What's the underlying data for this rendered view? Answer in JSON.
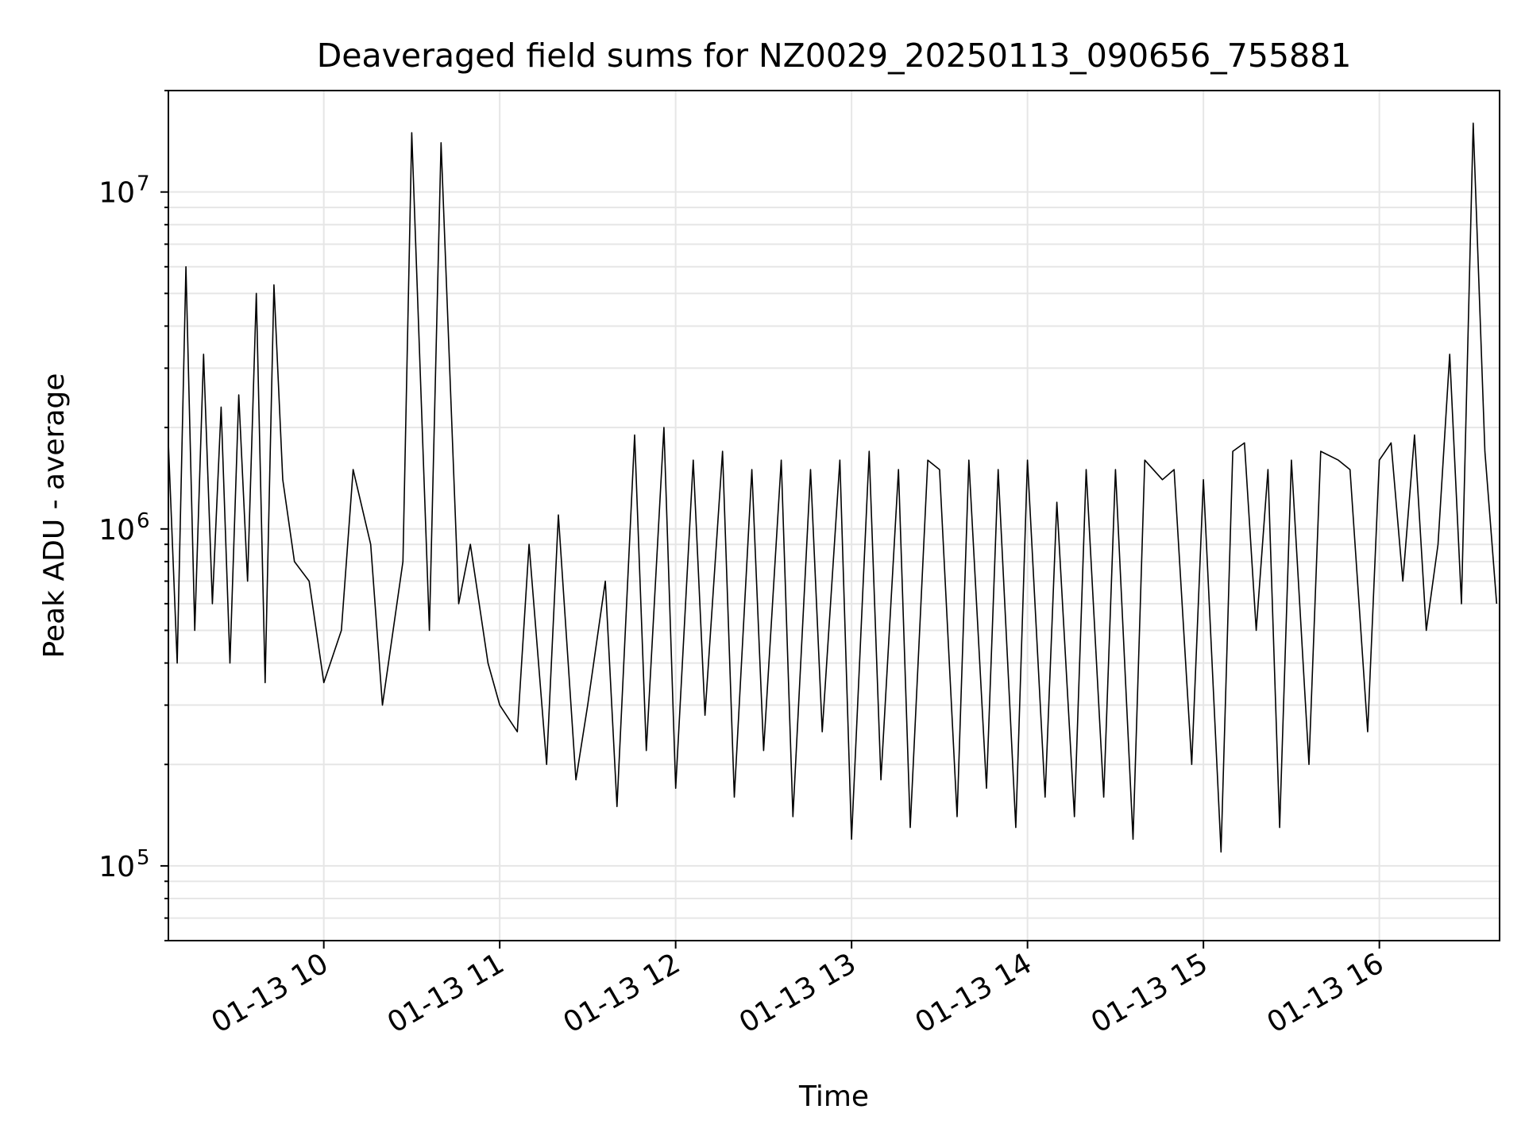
{
  "chart_data": {
    "type": "line",
    "title": "Deaveraged field sums for NZ0029_20250113_090656_755881",
    "xlabel": "Time",
    "ylabel": "Peak ADU - average",
    "yscale": "log",
    "ylim": [
      60000,
      20000000
    ],
    "xlim": [
      "2025-01-13 09:07",
      "2025-01-13 16:41"
    ],
    "grid": true,
    "x_ticks": [
      {
        "value": "2025-01-13 10:00",
        "label": "01-13 10"
      },
      {
        "value": "2025-01-13 11:00",
        "label": "01-13 11"
      },
      {
        "value": "2025-01-13 12:00",
        "label": "01-13 12"
      },
      {
        "value": "2025-01-13 13:00",
        "label": "01-13 13"
      },
      {
        "value": "2025-01-13 14:00",
        "label": "01-13 14"
      },
      {
        "value": "2025-01-13 15:00",
        "label": "01-13 15"
      },
      {
        "value": "2025-01-13 16:00",
        "label": "01-13 16"
      }
    ],
    "y_ticks": [
      {
        "value": 100000,
        "base": "10",
        "exp": "5"
      },
      {
        "value": 1000000,
        "base": "10",
        "exp": "6"
      },
      {
        "value": 10000000,
        "base": "10",
        "exp": "7"
      }
    ],
    "line_color": "#000000",
    "grid_color": "#e6e6e6",
    "series": [
      {
        "x": [
          "2025-01-13 09:07",
          "2025-01-13 09:10",
          "2025-01-13 09:13",
          "2025-01-13 09:16",
          "2025-01-13 09:19",
          "2025-01-13 09:22",
          "2025-01-13 09:25",
          "2025-01-13 09:28",
          "2025-01-13 09:31",
          "2025-01-13 09:34",
          "2025-01-13 09:37",
          "2025-01-13 09:40",
          "2025-01-13 09:43",
          "2025-01-13 09:46",
          "2025-01-13 09:50",
          "2025-01-13 09:55",
          "2025-01-13 10:00",
          "2025-01-13 10:06",
          "2025-01-13 10:10",
          "2025-01-13 10:16",
          "2025-01-13 10:20",
          "2025-01-13 10:27",
          "2025-01-13 10:30",
          "2025-01-13 10:36",
          "2025-01-13 10:40",
          "2025-01-13 10:46",
          "2025-01-13 10:50",
          "2025-01-13 10:56",
          "2025-01-13 11:00",
          "2025-01-13 11:06",
          "2025-01-13 11:10",
          "2025-01-13 11:16",
          "2025-01-13 11:20",
          "2025-01-13 11:26",
          "2025-01-13 11:30",
          "2025-01-13 11:36",
          "2025-01-13 11:40",
          "2025-01-13 11:46",
          "2025-01-13 11:50",
          "2025-01-13 11:56",
          "2025-01-13 12:00",
          "2025-01-13 12:06",
          "2025-01-13 12:10",
          "2025-01-13 12:16",
          "2025-01-13 12:20",
          "2025-01-13 12:26",
          "2025-01-13 12:30",
          "2025-01-13 12:36",
          "2025-01-13 12:40",
          "2025-01-13 12:46",
          "2025-01-13 12:50",
          "2025-01-13 12:56",
          "2025-01-13 13:00",
          "2025-01-13 13:06",
          "2025-01-13 13:10",
          "2025-01-13 13:16",
          "2025-01-13 13:20",
          "2025-01-13 13:26",
          "2025-01-13 13:30",
          "2025-01-13 13:36",
          "2025-01-13 13:40",
          "2025-01-13 13:46",
          "2025-01-13 13:50",
          "2025-01-13 13:56",
          "2025-01-13 14:00",
          "2025-01-13 14:06",
          "2025-01-13 14:10",
          "2025-01-13 14:16",
          "2025-01-13 14:20",
          "2025-01-13 14:26",
          "2025-01-13 14:30",
          "2025-01-13 14:36",
          "2025-01-13 14:40",
          "2025-01-13 14:46",
          "2025-01-13 14:50",
          "2025-01-13 14:56",
          "2025-01-13 15:00",
          "2025-01-13 15:06",
          "2025-01-13 15:10",
          "2025-01-13 15:14",
          "2025-01-13 15:18",
          "2025-01-13 15:22",
          "2025-01-13 15:26",
          "2025-01-13 15:30",
          "2025-01-13 15:36",
          "2025-01-13 15:40",
          "2025-01-13 15:46",
          "2025-01-13 15:50",
          "2025-01-13 15:56",
          "2025-01-13 16:00",
          "2025-01-13 16:04",
          "2025-01-13 16:08",
          "2025-01-13 16:12",
          "2025-01-13 16:16",
          "2025-01-13 16:20",
          "2025-01-13 16:24",
          "2025-01-13 16:28",
          "2025-01-13 16:32",
          "2025-01-13 16:36",
          "2025-01-13 16:40"
        ],
        "y": [
          1800000,
          400000,
          6000000,
          500000,
          3300000,
          600000,
          2300000,
          400000,
          2500000,
          700000,
          5000000,
          350000,
          5300000,
          1400000,
          800000,
          700000,
          350000,
          500000,
          1500000,
          900000,
          300000,
          800000,
          15000000,
          500000,
          14000000,
          600000,
          900000,
          400000,
          300000,
          250000,
          900000,
          200000,
          1100000,
          180000,
          300000,
          700000,
          150000,
          1900000,
          220000,
          2000000,
          170000,
          1600000,
          280000,
          1700000,
          160000,
          1500000,
          220000,
          1600000,
          140000,
          1500000,
          250000,
          1600000,
          120000,
          1700000,
          180000,
          1500000,
          130000,
          1600000,
          1500000,
          140000,
          1600000,
          170000,
          1500000,
          130000,
          1600000,
          160000,
          1200000,
          140000,
          1500000,
          160000,
          1500000,
          120000,
          1600000,
          1400000,
          1500000,
          200000,
          1400000,
          110000,
          1700000,
          1800000,
          500000,
          1500000,
          130000,
          1600000,
          200000,
          1700000,
          1600000,
          1500000,
          250000,
          1600000,
          1800000,
          700000,
          1900000,
          500000,
          900000,
          3300000,
          600000,
          16000000,
          1700000,
          600000
        ]
      }
    ]
  }
}
